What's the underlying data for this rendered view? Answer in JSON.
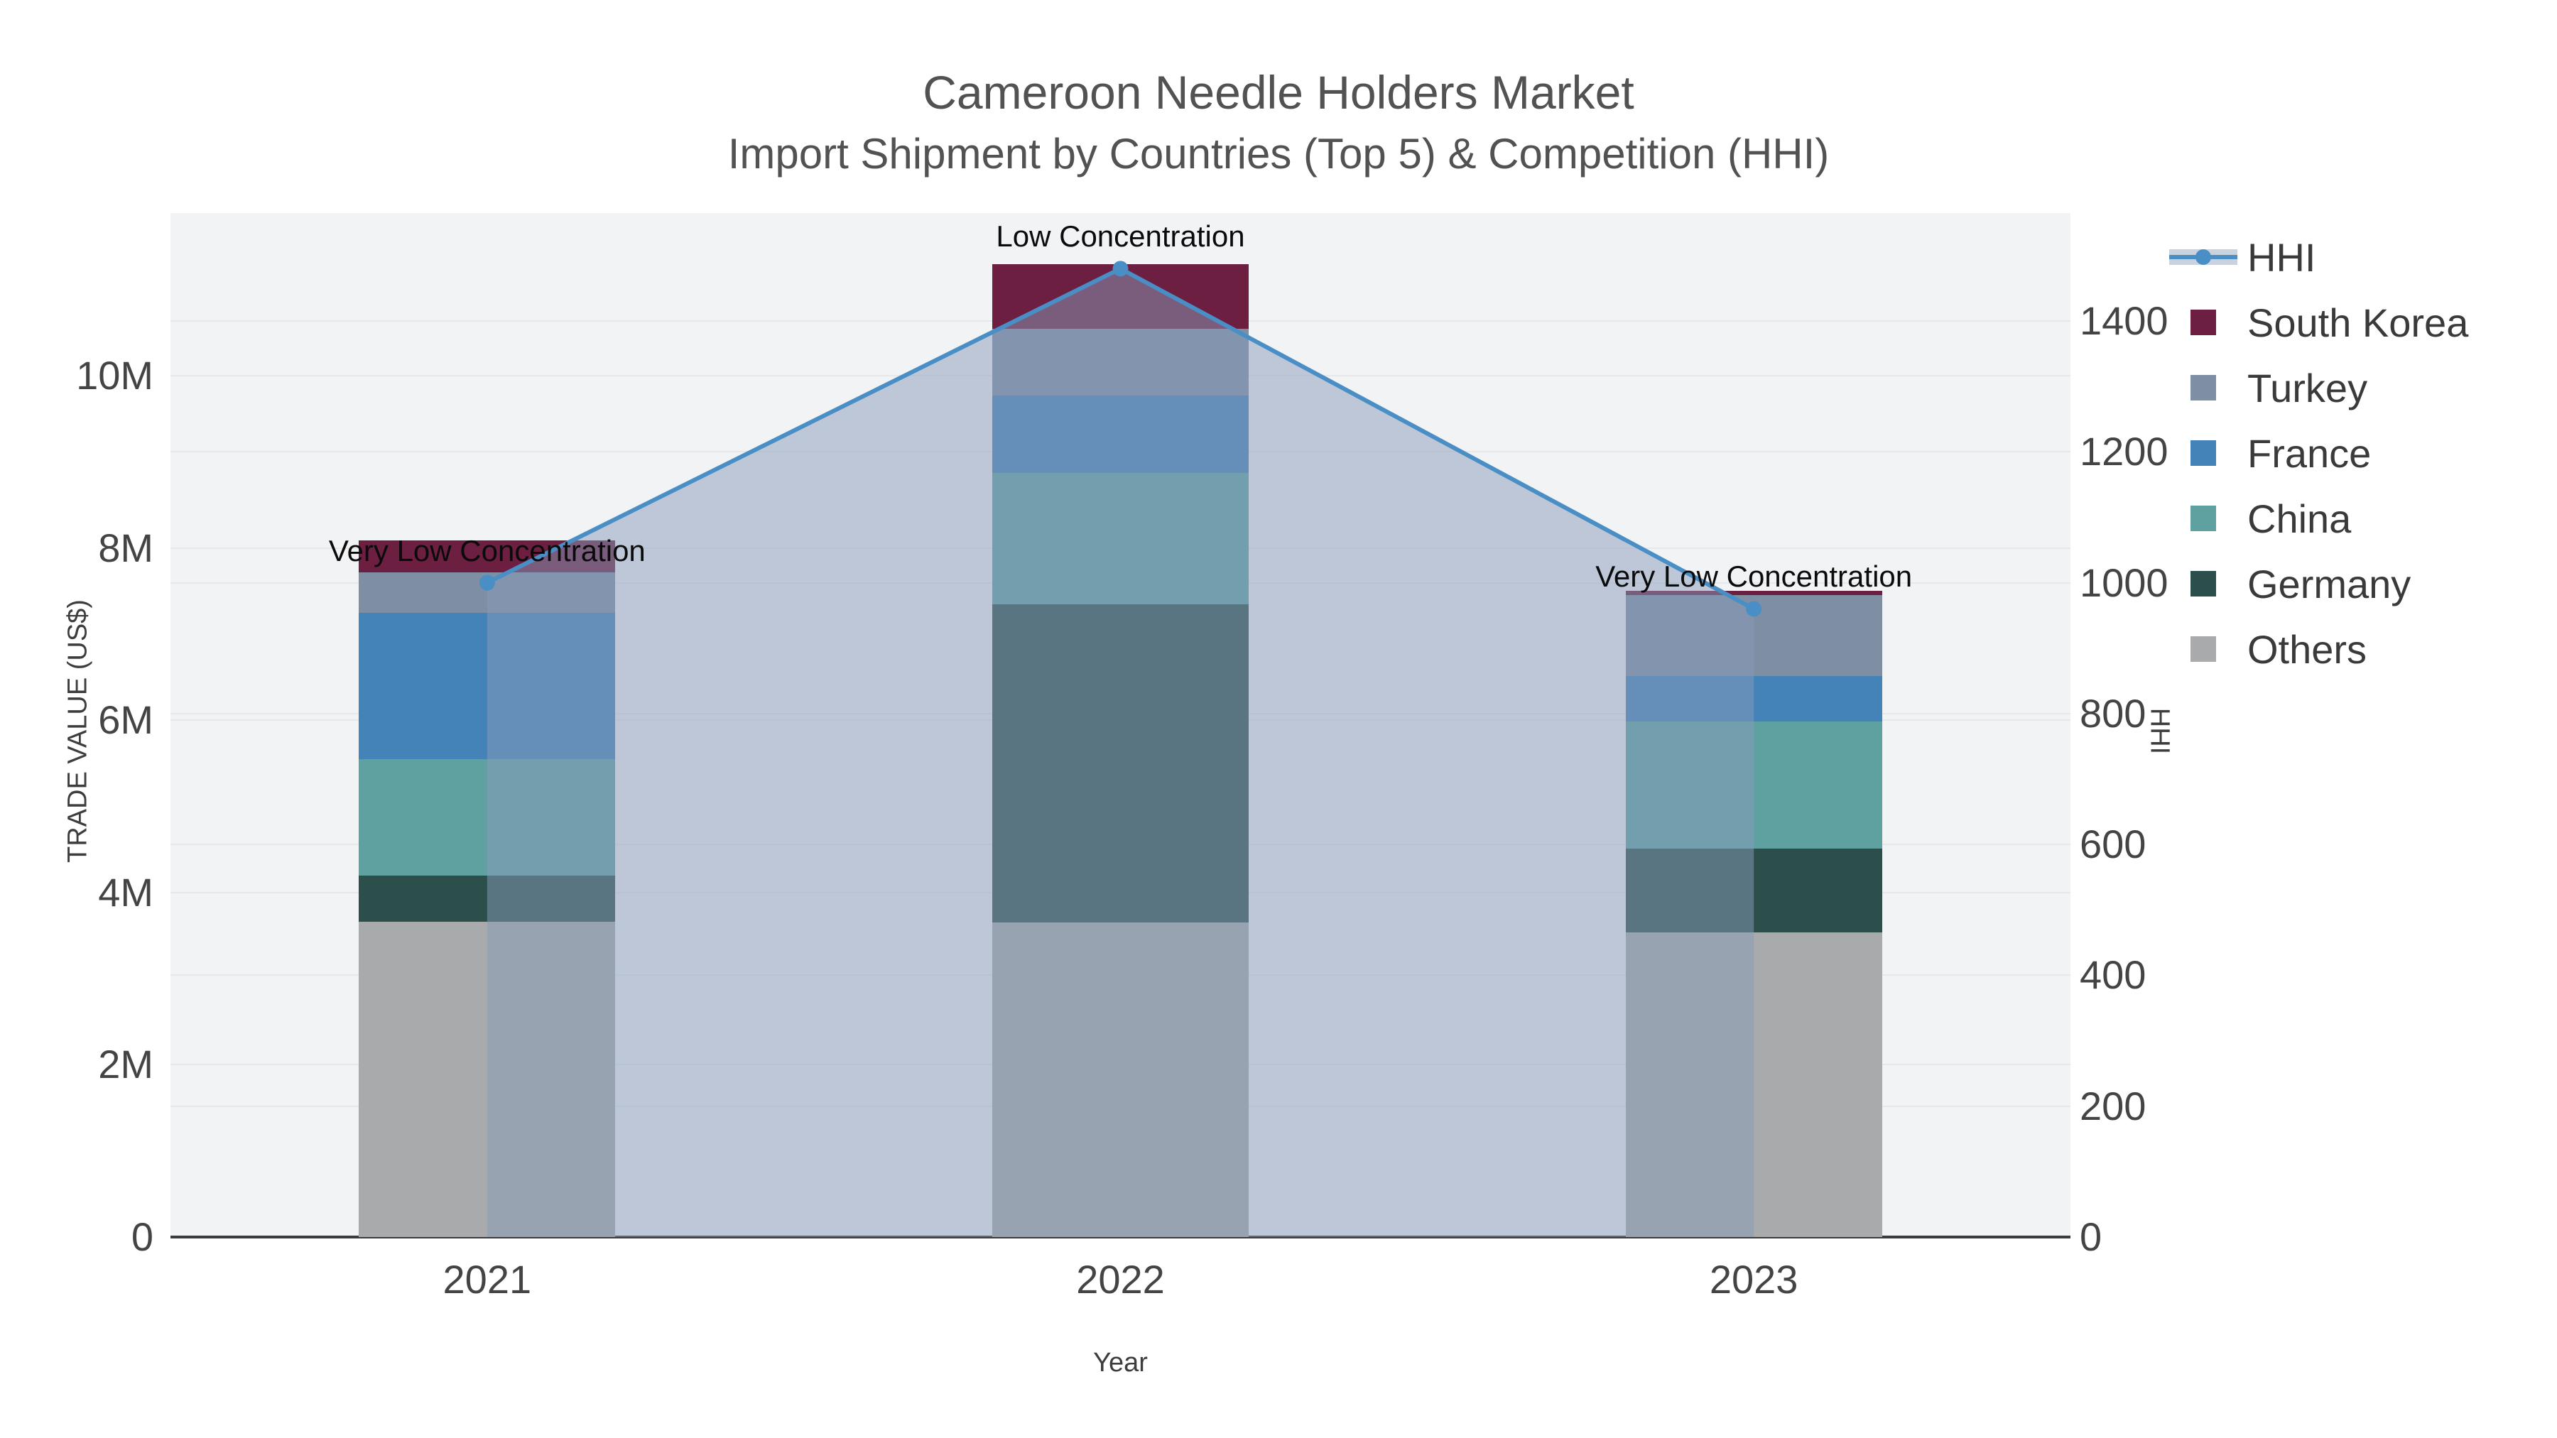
{
  "figure": {
    "title": "Cameroon Needle Holders Market",
    "subtitle": "Import Shipment by Countries (Top 5) & Competition (HHI)"
  },
  "axes": {
    "left": {
      "title": "TRADE VALUE (US$)",
      "ticks": [
        {
          "v": 0,
          "label": "0"
        },
        {
          "v": 2,
          "label": "2M"
        },
        {
          "v": 4,
          "label": "4M"
        },
        {
          "v": 6,
          "label": "6M"
        },
        {
          "v": 8,
          "label": "8M"
        },
        {
          "v": 10,
          "label": "10M"
        }
      ],
      "grid": [
        2,
        4,
        6,
        8,
        10
      ]
    },
    "right": {
      "title": "HHI",
      "ticks": [
        {
          "v": 0,
          "label": "0"
        },
        {
          "v": 200,
          "label": "200"
        },
        {
          "v": 400,
          "label": "400"
        },
        {
          "v": 600,
          "label": "600"
        },
        {
          "v": 800,
          "label": "800"
        },
        {
          "v": 1000,
          "label": "1000"
        },
        {
          "v": 1200,
          "label": "1200"
        },
        {
          "v": 1400,
          "label": "1400"
        }
      ],
      "grid": [
        200,
        400,
        600,
        800,
        1000,
        1200,
        1400
      ]
    },
    "x": {
      "title": "Year"
    }
  },
  "chart_data": {
    "type": "bar",
    "subtype": "stacked-bars-with-line",
    "categories": [
      "2021",
      "2022",
      "2023"
    ],
    "value_unit": "US$ millions",
    "series": [
      {
        "name": "Others",
        "color": "#A9AAAB",
        "values": [
          3.66,
          3.65,
          3.54
        ]
      },
      {
        "name": "Germany",
        "color": "#2D4F4B",
        "values": [
          0.54,
          3.7,
          0.97
        ]
      },
      {
        "name": "China",
        "color": "#5FA0A0",
        "values": [
          1.35,
          1.52,
          1.48
        ]
      },
      {
        "name": "France",
        "color": "#4383B8",
        "values": [
          1.7,
          0.9,
          0.52
        ]
      },
      {
        "name": "Turkey",
        "color": "#7E8FA3",
        "values": [
          0.47,
          0.78,
          0.94
        ]
      },
      {
        "name": "South Korea",
        "color": "#6C1F41",
        "values": [
          0.37,
          0.75,
          0.05
        ]
      }
    ],
    "bar_totals": [
      8.09,
      11.3,
      7.5
    ],
    "line": {
      "name": "HHI",
      "axis": "right",
      "color": "#4A8EC6",
      "area_fill": "rgba(135,156,185,0.5)",
      "values": [
        1000,
        1480,
        960
      ]
    },
    "annotations": [
      {
        "category": "2021",
        "text": "Very Low Concentration"
      },
      {
        "category": "2022",
        "text": "Low Concentration"
      },
      {
        "category": "2023",
        "text": "Very Low Concentration"
      }
    ],
    "ylabel_left": "TRADE VALUE (US$)",
    "ylabel_right": "HHI",
    "xlabel": "Year",
    "y_left_range": [
      0,
      11.89
    ],
    "y_right_range": [
      0,
      1565
    ],
    "grid": true,
    "legend_position": "right"
  }
}
